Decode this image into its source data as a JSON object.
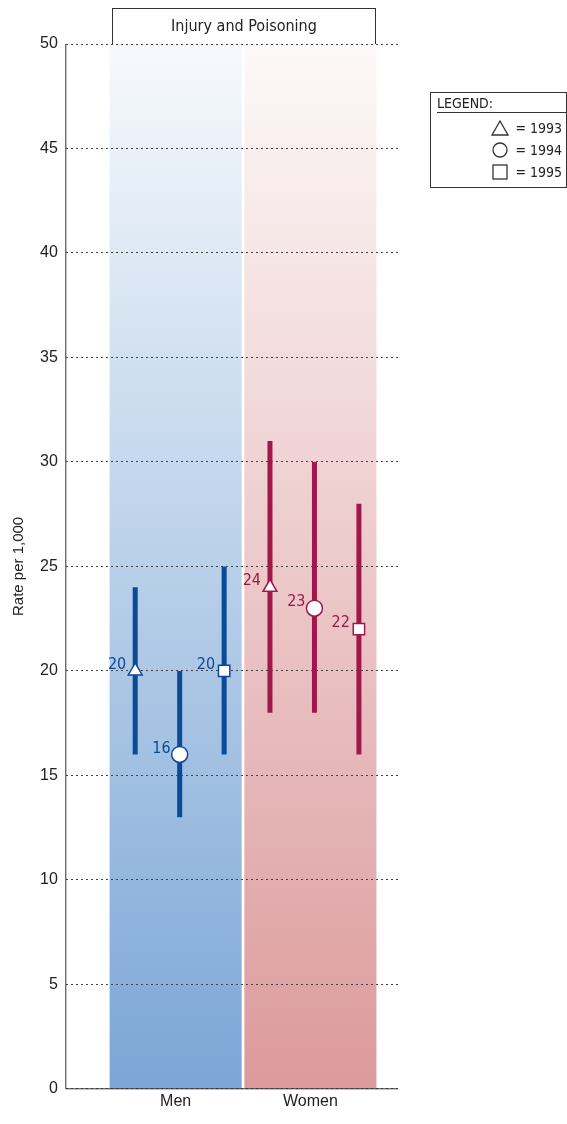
{
  "chart_data": {
    "type": "scatter",
    "title": "Injury and Poisoning",
    "ylabel": "Rate per 1,000",
    "legend_title": "LEGEND:",
    "categories": [
      "Men",
      "Women"
    ],
    "series": [
      {
        "name": "= 1993",
        "marker": "triangle",
        "color": "#333333",
        "colors": [
          "#0a4a96",
          "#a0174a"
        ],
        "values": [
          20,
          24
        ],
        "errors": [
          [
            16,
            24
          ],
          [
            18,
            31
          ]
        ]
      },
      {
        "name": "= 1994",
        "marker": "circle",
        "color": "#333333",
        "colors": [
          "#0a4a96",
          "#a0174a"
        ],
        "values": [
          16,
          23
        ],
        "errors": [
          [
            13,
            20
          ],
          [
            18,
            30
          ]
        ]
      },
      {
        "name": "= 1995",
        "marker": "square",
        "color": "#333333",
        "colors": [
          "#0a4a96",
          "#a0174a"
        ],
        "values": [
          20,
          22
        ],
        "errors": [
          [
            16,
            25
          ],
          [
            16,
            28
          ]
        ]
      }
    ],
    "bands": [
      {
        "axis": "x",
        "from": "Men",
        "to": "Men",
        "color": "#7ba6d6"
      },
      {
        "axis": "x",
        "from": "Women",
        "to": "Women",
        "color": "#dc9a9c"
      }
    ],
    "ylim": [
      0,
      50
    ],
    "yticks": [
      0,
      5,
      10,
      15,
      20,
      25,
      30,
      35,
      40,
      45,
      50
    ],
    "grid": "y",
    "legend": "top right",
    "data_labels": true
  }
}
